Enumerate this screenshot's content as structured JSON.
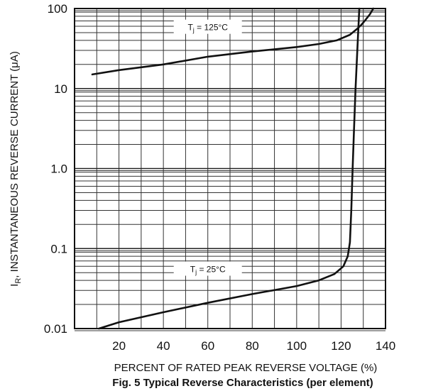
{
  "chart_data": {
    "type": "line",
    "title": "",
    "caption": "Fig. 5  Typical Reverse Characteristics (per element)",
    "xlabel": "PERCENT OF RATED PEAK  REVERSE VOLTAGE (%)",
    "ylabel_main": "I",
    "ylabel_sub": "R",
    "ylabel_rest": ", INSTANTANEOUS REVERSE CURRENT (μA)",
    "x_scale": "linear",
    "y_scale": "log",
    "xlim": [
      0,
      140
    ],
    "ylim": [
      0.01,
      100
    ],
    "x_ticks": [
      20,
      40,
      60,
      80,
      100,
      120,
      140
    ],
    "x_tick_labels": [
      "20",
      "40",
      "60",
      "80",
      "100",
      "120",
      "140"
    ],
    "y_ticks": [
      0.01,
      0.1,
      1.0,
      10,
      100
    ],
    "y_tick_labels": [
      "0.01",
      "0.1",
      "1.0",
      "10",
      "100"
    ],
    "grid": true,
    "series": [
      {
        "label": "T_j = 125°C",
        "label_main": "T",
        "label_sub": "j",
        "label_rest": " = 125°C",
        "points": [
          [
            8,
            15
          ],
          [
            20,
            17
          ],
          [
            40,
            20
          ],
          [
            60,
            25
          ],
          [
            80,
            29
          ],
          [
            100,
            33
          ],
          [
            110,
            36
          ],
          [
            118,
            40
          ],
          [
            124,
            47
          ],
          [
            127,
            55
          ],
          [
            129,
            62
          ],
          [
            131,
            72
          ],
          [
            133,
            85
          ],
          [
            134.5,
            100
          ]
        ]
      },
      {
        "label": "T_j = 25°C",
        "label_main": "T",
        "label_sub": "j",
        "label_rest": " = 25°C",
        "points": [
          [
            11,
            0.01
          ],
          [
            20,
            0.012
          ],
          [
            40,
            0.016
          ],
          [
            60,
            0.021
          ],
          [
            80,
            0.027
          ],
          [
            100,
            0.034
          ],
          [
            110,
            0.04
          ],
          [
            117,
            0.048
          ],
          [
            121,
            0.06
          ],
          [
            123,
            0.08
          ],
          [
            124,
            0.12
          ],
          [
            124.6,
            0.3
          ],
          [
            125.2,
            1
          ],
          [
            125.8,
            3
          ],
          [
            126.5,
            10
          ],
          [
            127.3,
            30
          ],
          [
            128.2,
            100
          ]
        ]
      }
    ]
  }
}
